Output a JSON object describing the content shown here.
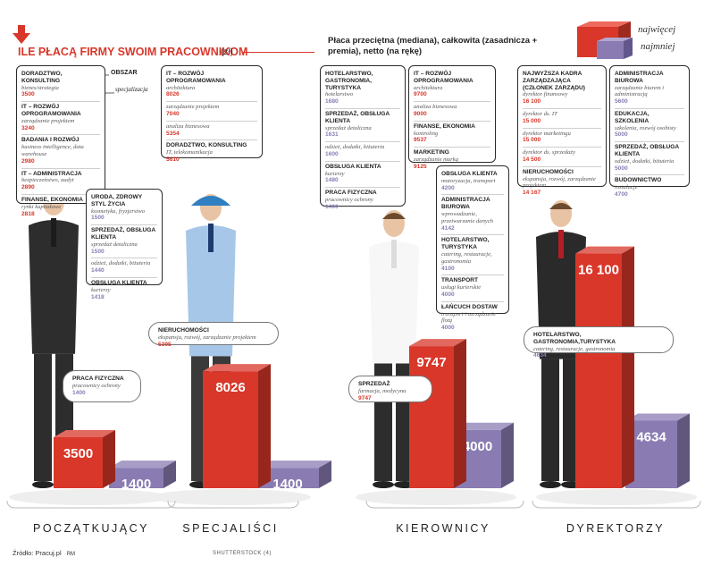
{
  "header": {
    "title": "ILE PŁACĄ FIRMY SWOIM PRACOWNIKOM",
    "unit": "(zł)",
    "subtitle": "Płaca przeciętna (mediana), całkowita (zasadnicza + premia), netto (na rękę)",
    "legend_high": "najwięcej",
    "legend_low": "najmniej"
  },
  "colors": {
    "accent_red": "#d8372a",
    "purple": "#8a7cb3",
    "frame": "#2a2a2a"
  },
  "key": {
    "obszar": "OBSZAR",
    "specjalizacja": "specjalizacja"
  },
  "chart_data": {
    "type": "bar",
    "title": "ILE PŁACĄ FIRMY SWOIM PRACOWNIKOM",
    "unit": "zł",
    "categories": [
      "POCZĄTKUJĄCY",
      "SPECJALIŚCI",
      "KIEROWNICY",
      "DYREKTORZY"
    ],
    "series": [
      {
        "name": "najwięcej",
        "color": "#d8372a",
        "values": [
          3500,
          8026,
          9747,
          16100
        ]
      },
      {
        "name": "najmniej",
        "color": "#8a7cb3",
        "values": [
          1400,
          1400,
          4000,
          4634
        ]
      }
    ],
    "bar_labels": {
      "najwięcej": [
        "3500",
        "8026",
        "9747",
        "16 100"
      ],
      "najmniej": [
        "1400",
        "1400",
        "4000",
        "4634"
      ]
    },
    "legend": "top-right",
    "grid": false
  },
  "groups": [
    {
      "label": "POCZĄTKUJĄCY",
      "top": [
        {
          "title": "DORADZTWO, KONSULTING",
          "sub": "biznes/strategia",
          "value": "3500",
          "tone": "red"
        },
        {
          "title": "IT – ROZWÓJ OPROGRAMOWANIA",
          "sub": "zarządzanie projektem",
          "value": "3240",
          "tone": "red"
        },
        {
          "title": "BADANIA I ROZWÓJ",
          "sub": "business intelligence, data warehouse",
          "value": "2980",
          "tone": "red"
        },
        {
          "title": "IT – ADMINISTRACJA",
          "sub": "bezpieczeństwo, audyt",
          "value": "2890",
          "tone": "red"
        },
        {
          "title": "FINANSE, EKONOMIA",
          "sub": "rynki kapitałowe",
          "value": "2818",
          "tone": "red"
        }
      ],
      "bottom": [
        {
          "title": "URODA, ZDROWY STYL ŻYCIA",
          "sub": "kosmetyka, fryzjerstwo",
          "value": "1500",
          "tone": "purple"
        },
        {
          "title": "SPRZEDAŻ, OBSŁUGA KLIENTA",
          "sub": "sprzedaż detaliczna",
          "value": "1500",
          "tone": "purple"
        },
        {
          "title": "",
          "sub": "odzież, dodatki, biżuteria",
          "value": "1440",
          "tone": "purple"
        },
        {
          "title": "OBSŁUGA KLIENTA",
          "sub": "kurierzy",
          "value": "1418",
          "tone": "purple"
        }
      ],
      "pill": {
        "title": "PRACA FIZYCZNA",
        "sub": "pracownicy ochrony",
        "value": "1400",
        "tone": "purple"
      }
    },
    {
      "label": "SPECJALIŚCI",
      "top": [
        {
          "title": "IT – ROZWÓJ OPROGRAMOWANIA",
          "sub": "architektura",
          "value": "8026",
          "tone": "red"
        },
        {
          "title": "",
          "sub": "zarządzanie projektem",
          "value": "7040",
          "tone": "red"
        },
        {
          "title": "",
          "sub": "analiza biznesowa",
          "value": "5354",
          "tone": "red"
        },
        {
          "title": "DORADZTWO, KONSULTING",
          "sub": "IT, telekomunikacja",
          "value": "5610",
          "tone": "red"
        }
      ],
      "bottom": [],
      "pill": {
        "title": "NIERUCHOMOŚCI",
        "sub": "ekspansja, rozwój, zarządzanie projektem",
        "value": "5395",
        "tone": "red"
      }
    },
    {
      "label": "KIEROWNICY",
      "top": [
        {
          "title": "HOTELARSTWO, GASTRONOMIA, TURYSTYKA",
          "sub": "hotelarstwo",
          "value": "1680",
          "tone": "purple"
        },
        {
          "title": "SPRZEDAŻ, OBSŁUGA KLIENTA",
          "sub": "sprzedaż detaliczna",
          "value": "1631",
          "tone": "purple"
        },
        {
          "title": "",
          "sub": "odzież, dodatki, biżuteria",
          "value": "1600",
          "tone": "purple"
        },
        {
          "title": "OBSŁUGA KLIENTA",
          "sub": "kurierzy",
          "value": "1480",
          "tone": "purple"
        },
        {
          "title": "PRACA FIZYCZNA",
          "sub": "pracownicy ochrony",
          "value": "1400",
          "tone": "purple"
        }
      ],
      "top2": [
        {
          "title": "IT – ROZWÓJ OPROGRAMOWANIA",
          "sub": "architektura",
          "value": "9700",
          "tone": "red"
        },
        {
          "title": "",
          "sub": "analiza biznesowa",
          "value": "9000",
          "tone": "red"
        },
        {
          "title": "FINANSE, EKONOMIA",
          "sub": "kontroling",
          "value": "9537",
          "tone": "red"
        },
        {
          "title": "MARKETING",
          "sub": "zarządzanie marką",
          "value": "9125",
          "tone": "red"
        }
      ],
      "bottom": [
        {
          "title": "OBSŁUGA KLIENTA",
          "sub": "motoryzacja, transport",
          "value": "4200",
          "tone": "purple"
        },
        {
          "title": "ADMINISTRACJA BIUROWA",
          "sub": "wprowadzanie, przetwarzanie danych",
          "value": "4142",
          "tone": "purple"
        },
        {
          "title": "HOTELARSTWO, TURYSTYKA",
          "sub": "catering, restauracje, gastronomia",
          "value": "4100",
          "tone": "purple"
        },
        {
          "title": "TRANSPORT",
          "sub": "usługi kurierskie",
          "value": "4000",
          "tone": "purple"
        },
        {
          "title": "ŁAŃCUCH DOSTAW",
          "sub": "transport i zarządzanie flotą",
          "value": "4000",
          "tone": "purple"
        }
      ],
      "pill": {
        "title": "SPRZEDAŻ",
        "sub": "farmacja, medycyna",
        "value": "9747",
        "tone": "red"
      }
    },
    {
      "label": "DYREKTORZY",
      "top": [
        {
          "title": "NAJWYŻSZA KADRA ZARZĄDZAJĄCA (CZŁONEK ZARZĄDU)",
          "sub": "dyrektor finansowy",
          "value": "16 100",
          "tone": "red"
        },
        {
          "title": "",
          "sub": "dyrektor ds. IT",
          "value": "15 000",
          "tone": "red"
        },
        {
          "title": "",
          "sub": "dyrektor marketingu",
          "value": "15 000",
          "tone": "red"
        },
        {
          "title": "",
          "sub": "dyrektor ds. sprzedaży",
          "value": "14 500",
          "tone": "red"
        },
        {
          "title": "NIERUCHOMOŚCI",
          "sub": "ekspansja, rozwój, zarządzanie projektem",
          "value": "14 167",
          "tone": "red"
        }
      ],
      "top2": [
        {
          "title": "ADMINISTRACJA BIUROWA",
          "sub": "zarządzanie biurem i administracją",
          "value": "5600",
          "tone": "purple"
        },
        {
          "title": "EDUKACJA, SZKOLENIA",
          "sub": "szkolenia, rozwój osobisty",
          "value": "5000",
          "tone": "purple"
        },
        {
          "title": "SPRZEDAŻ, OBSŁUGA KLIENTA",
          "sub": "odzież, dodatki, biżuteria",
          "value": "5000",
          "tone": "purple"
        },
        {
          "title": "BUDOWNICTWO",
          "sub": "instalacje",
          "value": "4700",
          "tone": "purple"
        }
      ],
      "bottom": [],
      "pill": {
        "title": "HOTELARSTWO, GASTRONOMIA,TURYSTYKA",
        "sub": "catering, restauracje, gastronomia",
        "value": "4634",
        "tone": "purple"
      }
    }
  ],
  "footer": {
    "source": "Źródło: Pracuj.pl",
    "author": "RM",
    "credit": "SHUTTERSTOCK (4)"
  }
}
